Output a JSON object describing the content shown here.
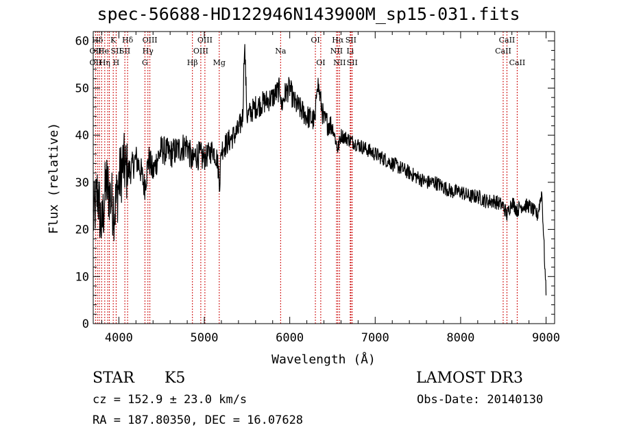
{
  "chart_data": {
    "type": "line",
    "title": "spec-56688-HD122946N143900M_sp15-031.fits",
    "xlabel": "Wavelength (Å)",
    "ylabel": "Flux (relative)",
    "xlim": [
      3700,
      9100
    ],
    "ylim": [
      0,
      62
    ],
    "xticks": [
      4000,
      5000,
      6000,
      7000,
      8000,
      9000
    ],
    "yticks": [
      0,
      10,
      20,
      30,
      40,
      50,
      60
    ],
    "grid": false,
    "series": [
      {
        "name": "spectrum",
        "x": [
          3700,
          3750,
          3800,
          3850,
          3900,
          3950,
          4000,
          4050,
          4100,
          4150,
          4200,
          4250,
          4300,
          4350,
          4400,
          4450,
          4500,
          4600,
          4700,
          4800,
          4860,
          4900,
          5000,
          5100,
          5150,
          5180,
          5200,
          5250,
          5300,
          5400,
          5450,
          5470,
          5500,
          5600,
          5700,
          5800,
          5890,
          5900,
          5950,
          6000,
          6050,
          6100,
          6200,
          6300,
          6320,
          6400,
          6500,
          6562,
          6600,
          6700,
          6800,
          6900,
          7000,
          7100,
          7200,
          7300,
          7400,
          7500,
          7600,
          7700,
          7800,
          7900,
          8000,
          8100,
          8200,
          8300,
          8400,
          8500,
          8542,
          8600,
          8662,
          8700,
          8800,
          8900,
          8950,
          9000
        ],
        "values": [
          22,
          28,
          20,
          30,
          27,
          24,
          30,
          34,
          32,
          33,
          35,
          33,
          29,
          35,
          32,
          35,
          37,
          36,
          37,
          38,
          34,
          36,
          35,
          37,
          35,
          30,
          37,
          38,
          39,
          41,
          44,
          60,
          44,
          46,
          47,
          48,
          50,
          46,
          49,
          50,
          47,
          46,
          44,
          43,
          52,
          43,
          42,
          37,
          40,
          39,
          38,
          37,
          36,
          35,
          34,
          33,
          32,
          31,
          30,
          30,
          29,
          28,
          28,
          27,
          27,
          26,
          26,
          25,
          23,
          26,
          24,
          25,
          25,
          23,
          28,
          6
        ]
      }
    ],
    "line_labels": [
      {
        "label": "Hδ",
        "wavelength": 3750,
        "row": 1
      },
      {
        "label": "OII",
        "wavelength": 3727,
        "row": 2
      },
      {
        "label": "OII",
        "wavelength": 3727,
        "row": 3
      },
      {
        "label": "He",
        "wavelength": 3820,
        "row": 2
      },
      {
        "label": "Hη",
        "wavelength": 3835,
        "row": 3
      },
      {
        "label": "K",
        "wavelength": 3934,
        "row": 1
      },
      {
        "label": "SII",
        "wavelength": 3970,
        "row": 2
      },
      {
        "label": "H",
        "wavelength": 3968,
        "row": 3
      },
      {
        "label": "Hδ",
        "wavelength": 4102,
        "row": 1
      },
      {
        "label": "SII",
        "wavelength": 4070,
        "row": 2
      },
      {
        "label": "OIII",
        "wavelength": 4363,
        "row": 1
      },
      {
        "label": "Hγ",
        "wavelength": 4340,
        "row": 2
      },
      {
        "label": "G",
        "wavelength": 4305,
        "row": 3
      },
      {
        "label": "Hβ",
        "wavelength": 4861,
        "row": 3
      },
      {
        "label": "OIII",
        "wavelength": 5007,
        "row": 1
      },
      {
        "label": "OIII",
        "wavelength": 4959,
        "row": 2
      },
      {
        "label": "Mg",
        "wavelength": 5175,
        "row": 3
      },
      {
        "label": "Na",
        "wavelength": 5893,
        "row": 2
      },
      {
        "label": "OI",
        "wavelength": 6300,
        "row": 1
      },
      {
        "label": "OI",
        "wavelength": 6363,
        "row": 3
      },
      {
        "label": "Hα",
        "wavelength": 6563,
        "row": 1
      },
      {
        "label": "SII",
        "wavelength": 6716,
        "row": 1
      },
      {
        "label": "NII",
        "wavelength": 6548,
        "row": 2
      },
      {
        "label": "Li",
        "wavelength": 6708,
        "row": 2
      },
      {
        "label": "NII",
        "wavelength": 6583,
        "row": 3
      },
      {
        "label": "SII",
        "wavelength": 6731,
        "row": 3
      },
      {
        "label": "CaII",
        "wavelength": 8542,
        "row": 1
      },
      {
        "label": "CaII",
        "wavelength": 8498,
        "row": 2
      },
      {
        "label": "CaII",
        "wavelength": 8662,
        "row": 3
      }
    ],
    "line_markers": [
      3727,
      3750,
      3771,
      3798,
      3835,
      3870,
      3889,
      3934,
      3968,
      4070,
      4102,
      4305,
      4340,
      4363,
      4861,
      4959,
      5007,
      5175,
      5893,
      6300,
      6363,
      6548,
      6563,
      6583,
      6708,
      6716,
      6731,
      8498,
      8542,
      8662
    ],
    "line_color": "#000000",
    "marker_color": "#cc0000"
  },
  "info": {
    "object_type": "STAR",
    "subclass": "K5",
    "survey": "LAMOST DR3",
    "redshift": "cz = 152.9 ± 23.0 km/s",
    "obs_date": "Obs-Date: 20140130",
    "coords": "RA = 187.80350, DEC =  16.07628"
  }
}
